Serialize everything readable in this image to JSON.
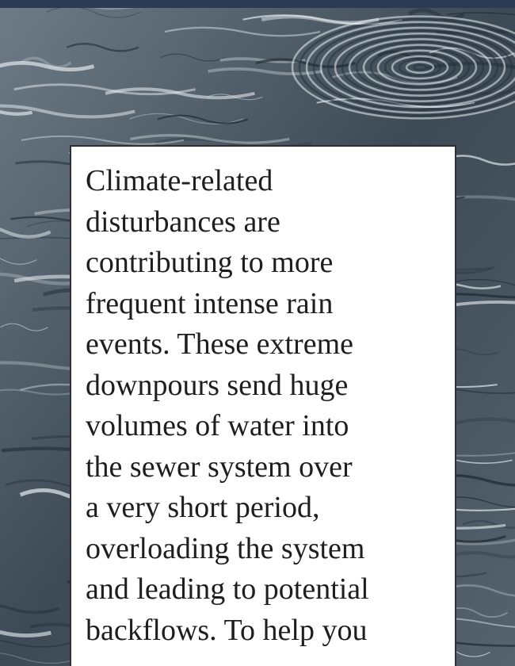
{
  "paragraph": {
    "lines": [
      "Climate-related",
      "disturbances are",
      "contributing to more",
      "frequent intense rain",
      "events. These extreme",
      "downpours send huge",
      "volumes of water into",
      "the sewer system over",
      "a very short period,",
      "overloading the system",
      "and leading to potential",
      "backflows. To help you"
    ]
  }
}
